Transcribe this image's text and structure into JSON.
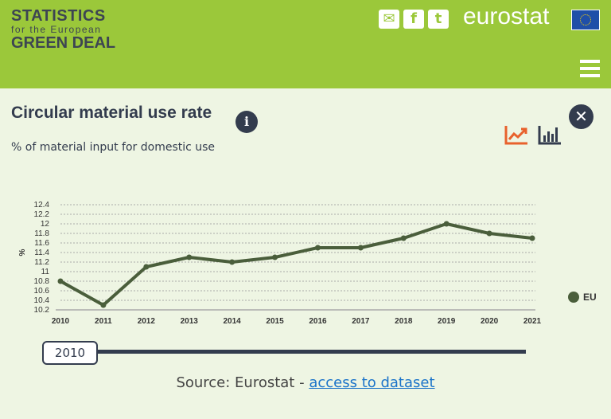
{
  "header": {
    "logo_line1": "STATISTICS",
    "logo_line2": "for the European",
    "logo_line3": "GREEN DEAL",
    "brand": "eurostat",
    "social_icons": [
      "envelope-icon",
      "facebook-icon",
      "twitter-icon"
    ]
  },
  "panel": {
    "title": "Circular material use rate",
    "subtitle": "% of material input for domestic use",
    "active_view": "line",
    "accent_color": "#e8612c"
  },
  "slider": {
    "value": "2010"
  },
  "footer": {
    "source_prefix": "Source: Eurostat - ",
    "link_label": "access to dataset"
  },
  "chart_data": {
    "type": "line",
    "title": "Circular material use rate",
    "xlabel": "",
    "ylabel": "%",
    "ylim": [
      10.2,
      12.4
    ],
    "yticks": [
      "10.2",
      "10.4",
      "10.6",
      "10.8",
      "11",
      "11.2",
      "11.4",
      "11.6",
      "11.8",
      "12",
      "12.2",
      "12.4"
    ],
    "categories": [
      "2010",
      "2011",
      "2012",
      "2013",
      "2014",
      "2015",
      "2016",
      "2017",
      "2018",
      "2019",
      "2020",
      "2021"
    ],
    "grid": true,
    "legend_placement": "right",
    "series": [
      {
        "name": "EU",
        "color": "#4a5e3b",
        "values": [
          10.8,
          10.3,
          11.1,
          11.3,
          11.2,
          11.3,
          11.5,
          11.5,
          11.7,
          12.0,
          11.8,
          11.7
        ]
      }
    ]
  }
}
